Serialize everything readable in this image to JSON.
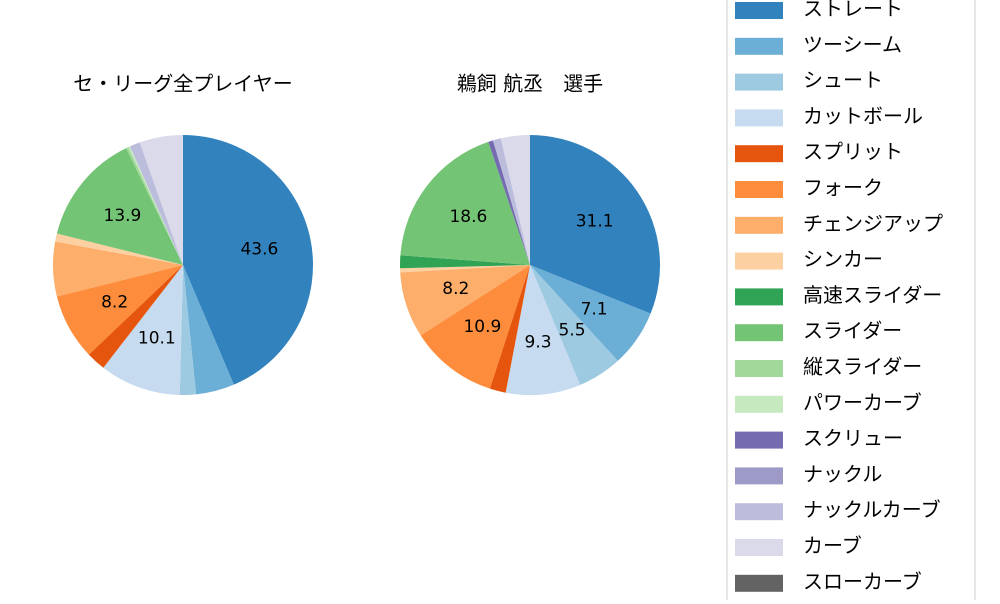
{
  "legend": {
    "categories": [
      "ストレート",
      "ツーシーム",
      "シュート",
      "カットボール",
      "スプリット",
      "フォーク",
      "チェンジアップ",
      "シンカー",
      "高速スライダー",
      "スライダー",
      "縦スライダー",
      "パワーカーブ",
      "スクリュー",
      "ナックル",
      "ナックルカーブ",
      "カーブ",
      "スローカーブ"
    ],
    "colors": [
      "#3182bd",
      "#6baed6",
      "#9ecae1",
      "#c6dbef",
      "#e6550d",
      "#fd8d3c",
      "#fdae6b",
      "#fdd0a2",
      "#31a354",
      "#74c476",
      "#a1d99b",
      "#c7e9c0",
      "#756bb1",
      "#9e9ac8",
      "#bcbddc",
      "#dadaeb",
      "#636363"
    ]
  },
  "chart_data": [
    {
      "type": "pie",
      "title": "セ・リーグ全プレイヤー",
      "values": [
        43.6,
        4.8,
        2.0,
        10.1,
        2.4,
        8.2,
        6.8,
        1.0,
        0,
        13.9,
        0.3,
        0.2,
        0,
        0,
        1.3,
        5.4,
        0
      ],
      "value_labels": [
        "43.6",
        null,
        null,
        "10.1",
        null,
        "8.2",
        null,
        null,
        null,
        "13.9",
        null,
        null,
        null,
        null,
        null,
        null,
        null
      ]
    },
    {
      "type": "pie",
      "title": "鵜飼 航丞　選手",
      "values": [
        31.1,
        7.1,
        5.5,
        9.3,
        2.0,
        10.9,
        8.2,
        0.5,
        1.6,
        18.6,
        0,
        0,
        0.6,
        0,
        1.0,
        3.6,
        0
      ],
      "value_labels": [
        "31.1",
        "7.1",
        "5.5",
        "9.3",
        null,
        "10.9",
        "8.2",
        null,
        null,
        "18.6",
        null,
        null,
        null,
        null,
        null,
        null,
        null
      ]
    }
  ]
}
